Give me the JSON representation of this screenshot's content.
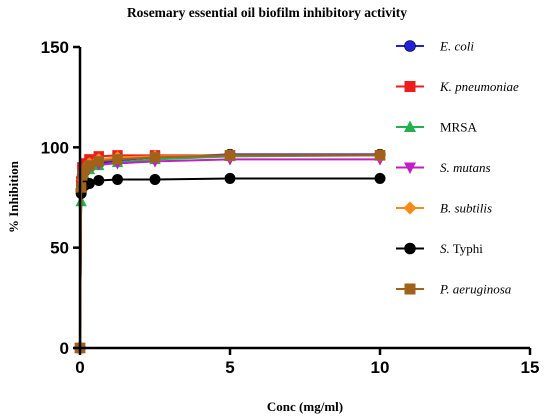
{
  "chart_data": {
    "type": "line",
    "title": "Rosemary essential oil biofilm inhibitory activity",
    "xlabel": "Conc (mg/ml)",
    "ylabel": "% Inhibition",
    "xlim": [
      0,
      15
    ],
    "ylim": [
      0,
      150
    ],
    "xticks": [
      0,
      5,
      10,
      15
    ],
    "yticks": [
      0,
      50,
      100,
      150
    ],
    "x_tick_labels": [
      "0",
      "5",
      "10",
      "15"
    ],
    "y_tick_labels": [
      "0",
      "50",
      "100",
      "150"
    ],
    "grid": false,
    "legend_position": "right",
    "x": [
      0,
      0.039,
      0.078,
      0.156,
      0.3125,
      0.625,
      1.25,
      2.5,
      5,
      10
    ],
    "series": [
      {
        "name": "E. coli",
        "name_italic": "E. coli",
        "name_suffix": "",
        "color": "#1f1fe0",
        "marker": "circle",
        "values": [
          0,
          79,
          86,
          88,
          90,
          92,
          93.5,
          95,
          96.5,
          96.5
        ]
      },
      {
        "name": "K. pneumoniae",
        "name_italic": "K. pneumoniae",
        "name_suffix": "",
        "color": "#ee1c1c",
        "marker": "square",
        "values": [
          0,
          83,
          90,
          92,
          94,
          95.5,
          96,
          96,
          96,
          96
        ]
      },
      {
        "name": "MRSA",
        "name_italic": "",
        "name_suffix": "MRSA",
        "color": "#22b14c",
        "marker": "triangle-up",
        "values": [
          0,
          73,
          82,
          86,
          89,
          91,
          92.5,
          94,
          95.5,
          96
        ]
      },
      {
        "name": "S. mutans",
        "name_italic": "S. mutans",
        "name_suffix": "",
        "color": "#c21fc2",
        "marker": "triangle-down",
        "values": [
          0,
          77,
          84,
          88,
          90,
          91.5,
          92,
          93,
          94,
          94
        ]
      },
      {
        "name": "B. subtilis",
        "name_italic": "B. subtilis",
        "name_suffix": "",
        "color": "#f58a14",
        "marker": "diamond",
        "values": [
          0,
          78,
          84,
          89,
          92,
          94,
          95,
          95.5,
          96,
          96
        ]
      },
      {
        "name": "S. Typhi",
        "name_italic": "S.",
        "name_suffix": " Typhi",
        "color": "#000000",
        "marker": "circle",
        "values": [
          0,
          77,
          80,
          81,
          82,
          83.5,
          84,
          84,
          84.5,
          84.5
        ]
      },
      {
        "name": "P. aeruginosa",
        "name_italic": "P. aeruginosa",
        "name_suffix": "",
        "color": "#a0621a",
        "marker": "square",
        "values": [
          0,
          80,
          86,
          89,
          91,
          93,
          94,
          95,
          96,
          96
        ]
      }
    ]
  }
}
